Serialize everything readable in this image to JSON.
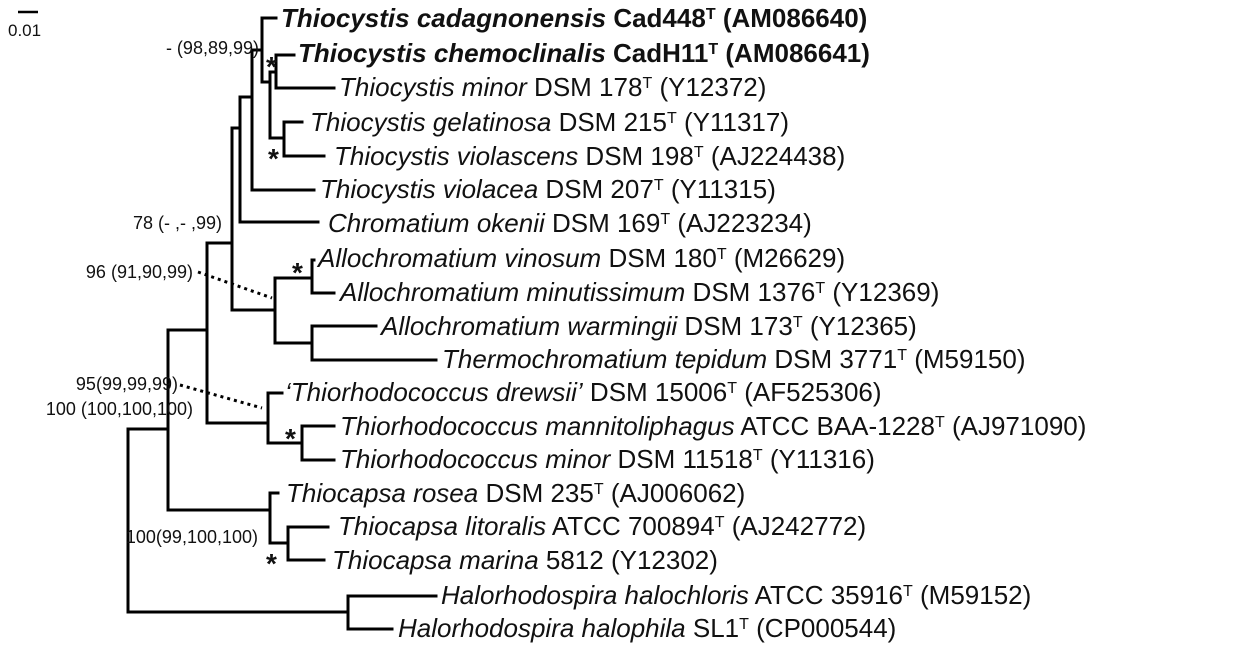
{
  "scale": {
    "label": "0.01"
  },
  "taxa": [
    {
      "genus_species": "Thiocystis cadagnonensis",
      "strain": "Cad448",
      "type": "T",
      "accession": "(AM086640)",
      "bold": true
    },
    {
      "genus_species": "Thiocystis chemoclinalis",
      "strain": "CadH11",
      "type": "T",
      "accession": "(AM086641)",
      "bold": true
    },
    {
      "genus_species": "Thiocystis minor",
      "strain": "DSM 178",
      "type": "T",
      "accession": "(Y12372)",
      "bold": false
    },
    {
      "genus_species": "Thiocystis gelatinosa",
      "strain": "DSM 215",
      "type": "T",
      "accession": "(Y11317)",
      "bold": false
    },
    {
      "genus_species": "Thiocystis violascens",
      "strain": "DSM 198",
      "type": "T",
      "accession": "(AJ224438)",
      "bold": false
    },
    {
      "genus_species": "Thiocystis violacea",
      "strain": "DSM 207",
      "type": "T",
      "accession": "(Y11315)",
      "bold": false
    },
    {
      "genus_species": "Chromatium okenii",
      "strain": "DSM 169",
      "type": "T",
      "accession": "(AJ223234)",
      "bold": false
    },
    {
      "genus_species": "Allochromatium vinosum",
      "strain": "DSM 180",
      "type": "T",
      "accession": "(M26629)",
      "bold": false
    },
    {
      "genus_species": "Allochromatium minutissimum",
      "strain": "DSM 1376",
      "type": "T",
      "accession": "(Y12369)",
      "bold": false
    },
    {
      "genus_species": "Allochromatium warmingii",
      "strain": "DSM 173",
      "type": "T",
      "accession": "(Y12365)",
      "bold": false
    },
    {
      "genus_species": "Thermochromatium tepidum",
      "strain": "DSM 3771",
      "type": "T",
      "accession": "(M59150)",
      "bold": false
    },
    {
      "genus_species": "‘Thiorhodococcus drewsii’",
      "strain": "DSM 15006",
      "type": "T",
      "accession": "(AF525306)",
      "bold": false
    },
    {
      "genus_species": "Thiorhodococcus mannitoliphagus",
      "strain": "ATCC BAA-1228",
      "type": "T",
      "accession": "(AJ971090)",
      "bold": false
    },
    {
      "genus_species": "Thiorhodococcus minor",
      "strain": "DSM 11518",
      "type": "T",
      "accession": "(Y11316)",
      "bold": false
    },
    {
      "genus_species": "Thiocapsa rosea",
      "strain": "DSM 235",
      "type": "T",
      "accession": "(AJ006062)",
      "bold": false
    },
    {
      "genus_species": "Thiocapsa litoralis",
      "strain": "ATCC 700894",
      "type": "T",
      "accession": "(AJ242772)",
      "bold": false
    },
    {
      "genus_species": "Thiocapsa marina",
      "strain": "5812",
      "type": "",
      "accession": "(Y12302)",
      "bold": false
    },
    {
      "genus_species": "Halorhodospira halochloris",
      "strain": "ATCC 35916",
      "type": "T",
      "accession": "(M59152)",
      "bold": false
    },
    {
      "genus_species": "Halorhodospira halophila",
      "strain": "SL1",
      "type": "T",
      "accession": "(CP000544)",
      "bold": false
    }
  ],
  "support_labels": [
    {
      "text": "- (98,89,99)"
    },
    {
      "text": "78 (- ,- ,99)"
    },
    {
      "text": "96 (91,90,99)"
    },
    {
      "text": "95(99,99,99)"
    },
    {
      "text": "100 (100,100,100)"
    },
    {
      "text": "100(99,100,100)"
    }
  ],
  "star_symbol": "*"
}
